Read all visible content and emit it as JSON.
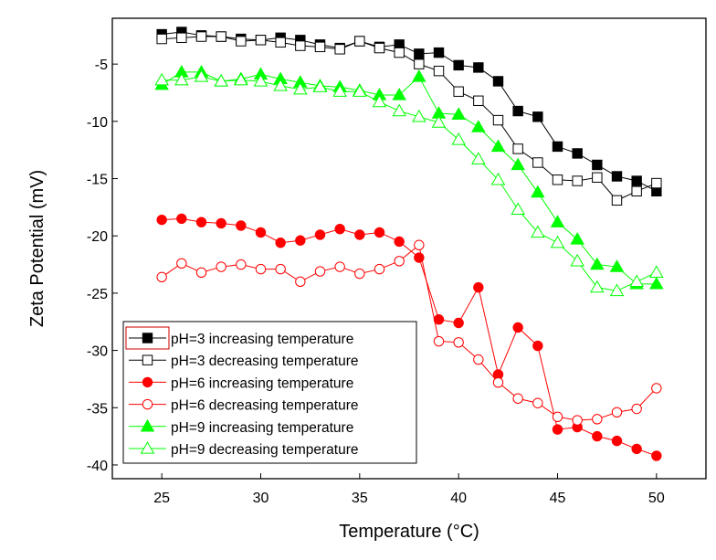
{
  "chart_data": {
    "type": "line",
    "title": "",
    "xlabel": "Temperature (°C)",
    "ylabel": "Zeta Potential (mV)",
    "xlim": [
      22.5,
      52.5
    ],
    "ylim": [
      -41.2,
      -1
    ],
    "xticks": [
      25,
      30,
      35,
      40,
      45,
      50
    ],
    "yticks": [
      -5,
      -10,
      -15,
      -20,
      -25,
      -30,
      -35,
      -40
    ],
    "legend_position": "bottom-left",
    "grid": false,
    "x": [
      25,
      26,
      27,
      28,
      29,
      30,
      31,
      32,
      33,
      34,
      35,
      36,
      37,
      38,
      39,
      40,
      41,
      42,
      43,
      44,
      45,
      46,
      47,
      48,
      49,
      50
    ],
    "series": [
      {
        "name": "pH=3 increasing temperature",
        "color": "#000000",
        "marker": "square",
        "filled": true,
        "values": [
          -2.4,
          -2.2,
          -2.5,
          -2.6,
          -2.8,
          -2.9,
          -2.7,
          -2.9,
          -3.3,
          -3.6,
          -3.0,
          -3.5,
          -3.3,
          -4.1,
          -4.0,
          -5.1,
          -5.3,
          -6.5,
          -9.1,
          -9.6,
          -12.2,
          -12.8,
          -13.8,
          -14.8,
          -15.2,
          -16.1
        ]
      },
      {
        "name": "pH=3 decreasing temperature",
        "color": "#000000",
        "marker": "square",
        "filled": false,
        "values": [
          -2.8,
          -2.7,
          -2.6,
          -2.6,
          -3.0,
          -2.9,
          -3.1,
          -3.4,
          -3.5,
          -3.7,
          -3.0,
          -3.6,
          -4.0,
          -5.0,
          -5.6,
          -7.4,
          -8.2,
          -9.9,
          -12.4,
          -13.6,
          -15.1,
          -15.2,
          -14.9,
          -16.9,
          -16.1,
          -15.4
        ]
      },
      {
        "name": "pH=6 increasing temperature",
        "color": "#ff0000",
        "marker": "circle",
        "filled": true,
        "values": [
          -18.6,
          -18.5,
          -18.8,
          -18.9,
          -19.1,
          -19.7,
          -20.6,
          -20.4,
          -19.9,
          -19.4,
          -19.9,
          -19.7,
          -20.5,
          -21.9,
          -27.3,
          -27.6,
          -24.5,
          -32.1,
          -28.0,
          -29.6,
          -36.9,
          -36.7,
          -37.5,
          -37.9,
          -38.6,
          -39.2
        ]
      },
      {
        "name": "pH=6 decreasing temperature",
        "color": "#ff0000",
        "marker": "circle",
        "filled": false,
        "values": [
          -23.6,
          -22.4,
          -23.2,
          -22.7,
          -22.5,
          -22.9,
          -22.9,
          -24.0,
          -23.1,
          -22.7,
          -23.3,
          -22.9,
          -22.2,
          -20.8,
          -29.2,
          -29.3,
          -30.8,
          -32.8,
          -34.2,
          -34.6,
          -35.8,
          -36.1,
          -36.0,
          -35.4,
          -35.1,
          -33.3
        ]
      },
      {
        "name": "pH=9 increasing temperature",
        "color": "#00ff00",
        "marker": "triangle",
        "filled": true,
        "values": [
          -6.8,
          -5.7,
          -5.7,
          -6.5,
          -6.3,
          -5.9,
          -6.3,
          -6.6,
          -6.9,
          -7.0,
          -7.3,
          -7.7,
          -7.7,
          -6.1,
          -9.3,
          -9.4,
          -10.5,
          -12.2,
          -13.8,
          -16.2,
          -18.8,
          -20.3,
          -22.5,
          -22.7,
          -24.2,
          -24.2
        ]
      },
      {
        "name": "pH=9 decreasing temperature",
        "color": "#00ff00",
        "marker": "triangle",
        "filled": false,
        "values": [
          -6.4,
          -6.4,
          -6.1,
          -6.5,
          -6.4,
          -6.5,
          -6.9,
          -7.2,
          -7.0,
          -7.4,
          -7.4,
          -8.3,
          -9.1,
          -9.6,
          -10.1,
          -11.6,
          -13.3,
          -15.1,
          -17.7,
          -19.7,
          -20.6,
          -22.2,
          -24.5,
          -24.8,
          -24.0,
          -23.2
        ]
      }
    ]
  }
}
